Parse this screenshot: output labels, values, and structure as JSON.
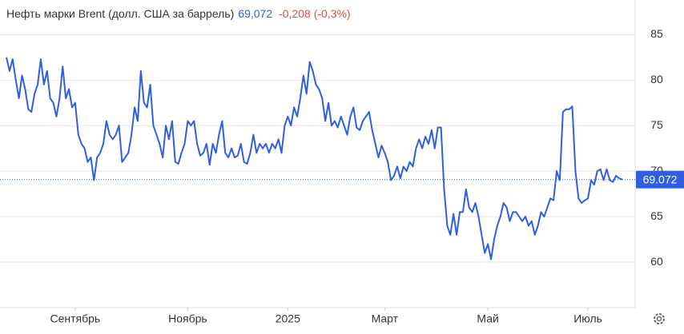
{
  "chart_data": {
    "type": "line",
    "title": "Нефть марки Brent (долл. США за баррель)",
    "price": "69,072",
    "change": "-0,208 (-0,3%)",
    "series": [
      {
        "name": "Brent",
        "color": "#2f5fe0",
        "values": [
          82.5,
          81,
          82.3,
          80,
          78,
          80.5,
          79,
          76.8,
          76.5,
          78.5,
          79.5,
          82.3,
          79.5,
          81,
          78,
          77.5,
          76,
          78,
          81.5,
          78,
          79,
          77,
          77.5,
          74,
          73,
          72.5,
          71,
          71.5,
          69,
          71.5,
          72,
          73,
          75.5,
          74,
          73.5,
          74,
          75,
          71,
          71.5,
          72,
          74,
          77,
          75.5,
          81,
          77.5,
          77,
          79.5,
          75,
          74,
          73,
          71.5,
          75,
          73.5,
          75.5,
          71,
          70.8,
          72,
          73,
          75.5,
          75,
          75.5,
          73,
          71.7,
          72,
          73,
          70.7,
          73,
          72,
          74,
          75.5,
          72,
          71.5,
          72.5,
          71.5,
          71.7,
          73,
          71,
          70.8,
          72,
          74,
          72,
          73,
          72.5,
          73,
          72,
          73,
          72.5,
          73.5,
          72,
          75,
          76,
          75,
          77,
          76,
          78,
          80.5,
          78.5,
          82,
          81,
          79.5,
          79,
          78,
          75.5,
          77.5,
          75,
          75.5,
          74.8,
          76,
          75,
          74,
          76,
          77,
          74.8,
          74.5,
          75.5,
          76,
          76.5,
          74.5,
          73,
          71.5,
          72.8,
          72,
          71,
          69,
          69.5,
          70.5,
          69.2,
          70.5,
          70,
          71,
          70.5,
          72.5,
          73.5,
          72.5,
          73.8,
          73,
          74.5,
          72.5,
          74.8,
          74.8,
          68,
          64,
          63,
          65.3,
          63,
          65.5,
          65.5,
          68,
          66,
          65.5,
          66.5,
          65,
          63,
          61,
          62,
          60.3,
          62.5,
          64,
          65,
          66.5,
          66,
          64.5,
          65.5,
          65.5,
          65,
          64.5,
          65,
          64,
          64.5,
          63,
          64,
          65.5,
          65,
          66,
          67,
          66.8,
          70,
          69,
          76.5,
          76.8,
          76.8,
          77.1,
          70,
          67,
          66.5,
          66.8,
          67,
          69,
          68.5,
          70,
          70.2,
          69,
          70.2,
          69,
          68.8,
          69.5,
          69.2,
          69.072
        ]
      }
    ],
    "xticks": [
      {
        "value": 22,
        "label": "Сентябрь"
      },
      {
        "value": 58,
        "label": "Ноябрь"
      },
      {
        "value": 90,
        "label": "2025"
      },
      {
        "value": 121,
        "label": "Март"
      },
      {
        "value": 154,
        "label": "Май"
      },
      {
        "value": 186,
        "label": "Июль"
      }
    ],
    "ylim": [
      55,
      88.8
    ],
    "yticks": [
      60,
      65,
      70,
      75,
      80,
      85
    ],
    "grid": true
  }
}
